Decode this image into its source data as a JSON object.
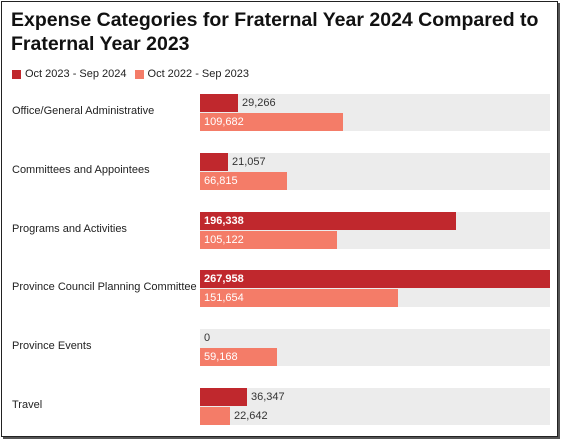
{
  "chart_data": {
    "type": "bar",
    "orientation": "horizontal",
    "title": "Expense Categories for Fraternal Year 2024 Compared to Fraternal Year 2023",
    "categories": [
      "Office/General Administrative",
      "Committees and Appointees",
      "Programs and Activities",
      "Province Council Planning Committee",
      "Province Events",
      "Travel"
    ],
    "series": [
      {
        "name": "Oct 2023 - Sep 2024",
        "color": "#c0282d",
        "values": [
          29266,
          21057,
          196338,
          267958,
          0,
          36347
        ],
        "labels": [
          "29,266",
          "21,057",
          "196,338",
          "267,958",
          "0",
          "36,347"
        ]
      },
      {
        "name": "Oct 2022 - Sep 2023",
        "color": "#f47c68",
        "values": [
          109682,
          66815,
          105122,
          151654,
          59168,
          22642
        ],
        "labels": [
          "109,682",
          "66,815",
          "105,122",
          "151,654",
          "59,168",
          "22,642"
        ]
      }
    ],
    "xlim": [
      0,
      267958
    ],
    "legend_position": "top-left",
    "grid": false
  }
}
